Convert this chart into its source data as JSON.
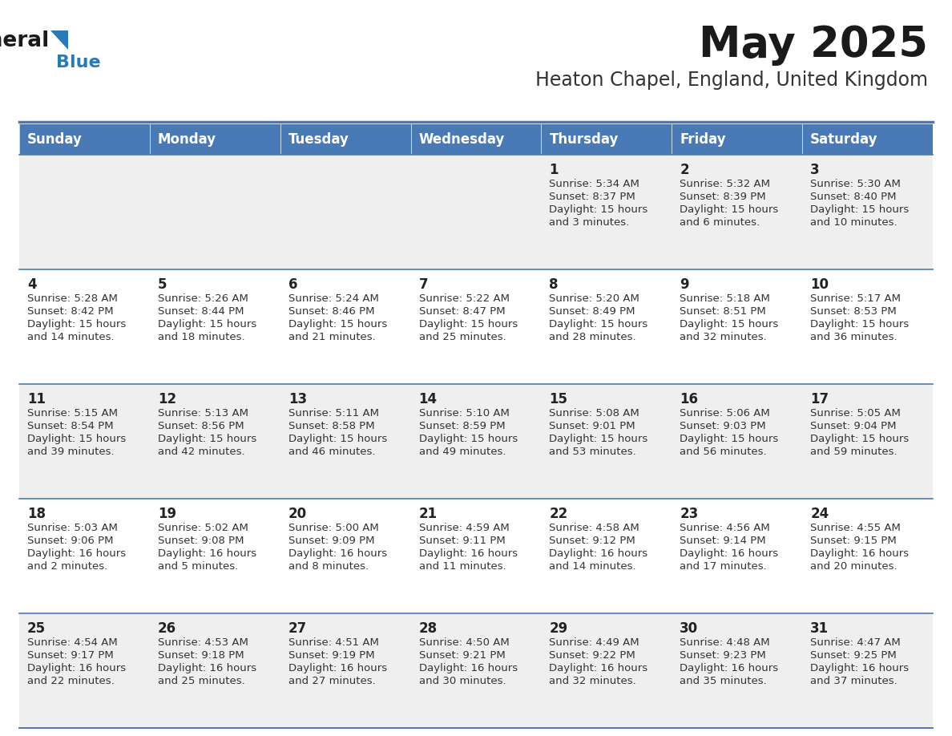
{
  "title": "May 2025",
  "subtitle": "Heaton Chapel, England, United Kingdom",
  "days_of_week": [
    "Sunday",
    "Monday",
    "Tuesday",
    "Wednesday",
    "Thursday",
    "Friday",
    "Saturday"
  ],
  "header_bg": "#4a7ab5",
  "header_text": "#FFFFFF",
  "cell_bg_light": "#efefef",
  "cell_bg_white": "#FFFFFF",
  "cell_border": "#4a7ab5",
  "day_number_color": "#222222",
  "text_color": "#333333",
  "title_color": "#1a1a1a",
  "subtitle_color": "#333333",
  "logo_black": "#1a1a1a",
  "logo_blue": "#2a7ab5",
  "calendar": [
    [
      {
        "day": "",
        "sunrise": "",
        "sunset": "",
        "daylight": ""
      },
      {
        "day": "",
        "sunrise": "",
        "sunset": "",
        "daylight": ""
      },
      {
        "day": "",
        "sunrise": "",
        "sunset": "",
        "daylight": ""
      },
      {
        "day": "",
        "sunrise": "",
        "sunset": "",
        "daylight": ""
      },
      {
        "day": "1",
        "sunrise": "5:34 AM",
        "sunset": "8:37 PM",
        "daylight": "15 hours\nand 3 minutes."
      },
      {
        "day": "2",
        "sunrise": "5:32 AM",
        "sunset": "8:39 PM",
        "daylight": "15 hours\nand 6 minutes."
      },
      {
        "day": "3",
        "sunrise": "5:30 AM",
        "sunset": "8:40 PM",
        "daylight": "15 hours\nand 10 minutes."
      }
    ],
    [
      {
        "day": "4",
        "sunrise": "5:28 AM",
        "sunset": "8:42 PM",
        "daylight": "15 hours\nand 14 minutes."
      },
      {
        "day": "5",
        "sunrise": "5:26 AM",
        "sunset": "8:44 PM",
        "daylight": "15 hours\nand 18 minutes."
      },
      {
        "day": "6",
        "sunrise": "5:24 AM",
        "sunset": "8:46 PM",
        "daylight": "15 hours\nand 21 minutes."
      },
      {
        "day": "7",
        "sunrise": "5:22 AM",
        "sunset": "8:47 PM",
        "daylight": "15 hours\nand 25 minutes."
      },
      {
        "day": "8",
        "sunrise": "5:20 AM",
        "sunset": "8:49 PM",
        "daylight": "15 hours\nand 28 minutes."
      },
      {
        "day": "9",
        "sunrise": "5:18 AM",
        "sunset": "8:51 PM",
        "daylight": "15 hours\nand 32 minutes."
      },
      {
        "day": "10",
        "sunrise": "5:17 AM",
        "sunset": "8:53 PM",
        "daylight": "15 hours\nand 36 minutes."
      }
    ],
    [
      {
        "day": "11",
        "sunrise": "5:15 AM",
        "sunset": "8:54 PM",
        "daylight": "15 hours\nand 39 minutes."
      },
      {
        "day": "12",
        "sunrise": "5:13 AM",
        "sunset": "8:56 PM",
        "daylight": "15 hours\nand 42 minutes."
      },
      {
        "day": "13",
        "sunrise": "5:11 AM",
        "sunset": "8:58 PM",
        "daylight": "15 hours\nand 46 minutes."
      },
      {
        "day": "14",
        "sunrise": "5:10 AM",
        "sunset": "8:59 PM",
        "daylight": "15 hours\nand 49 minutes."
      },
      {
        "day": "15",
        "sunrise": "5:08 AM",
        "sunset": "9:01 PM",
        "daylight": "15 hours\nand 53 minutes."
      },
      {
        "day": "16",
        "sunrise": "5:06 AM",
        "sunset": "9:03 PM",
        "daylight": "15 hours\nand 56 minutes."
      },
      {
        "day": "17",
        "sunrise": "5:05 AM",
        "sunset": "9:04 PM",
        "daylight": "15 hours\nand 59 minutes."
      }
    ],
    [
      {
        "day": "18",
        "sunrise": "5:03 AM",
        "sunset": "9:06 PM",
        "daylight": "16 hours\nand 2 minutes."
      },
      {
        "day": "19",
        "sunrise": "5:02 AM",
        "sunset": "9:08 PM",
        "daylight": "16 hours\nand 5 minutes."
      },
      {
        "day": "20",
        "sunrise": "5:00 AM",
        "sunset": "9:09 PM",
        "daylight": "16 hours\nand 8 minutes."
      },
      {
        "day": "21",
        "sunrise": "4:59 AM",
        "sunset": "9:11 PM",
        "daylight": "16 hours\nand 11 minutes."
      },
      {
        "day": "22",
        "sunrise": "4:58 AM",
        "sunset": "9:12 PM",
        "daylight": "16 hours\nand 14 minutes."
      },
      {
        "day": "23",
        "sunrise": "4:56 AM",
        "sunset": "9:14 PM",
        "daylight": "16 hours\nand 17 minutes."
      },
      {
        "day": "24",
        "sunrise": "4:55 AM",
        "sunset": "9:15 PM",
        "daylight": "16 hours\nand 20 minutes."
      }
    ],
    [
      {
        "day": "25",
        "sunrise": "4:54 AM",
        "sunset": "9:17 PM",
        "daylight": "16 hours\nand 22 minutes."
      },
      {
        "day": "26",
        "sunrise": "4:53 AM",
        "sunset": "9:18 PM",
        "daylight": "16 hours\nand 25 minutes."
      },
      {
        "day": "27",
        "sunrise": "4:51 AM",
        "sunset": "9:19 PM",
        "daylight": "16 hours\nand 27 minutes."
      },
      {
        "day": "28",
        "sunrise": "4:50 AM",
        "sunset": "9:21 PM",
        "daylight": "16 hours\nand 30 minutes."
      },
      {
        "day": "29",
        "sunrise": "4:49 AM",
        "sunset": "9:22 PM",
        "daylight": "16 hours\nand 32 minutes."
      },
      {
        "day": "30",
        "sunrise": "4:48 AM",
        "sunset": "9:23 PM",
        "daylight": "16 hours\nand 35 minutes."
      },
      {
        "day": "31",
        "sunrise": "4:47 AM",
        "sunset": "9:25 PM",
        "daylight": "16 hours\nand 37 minutes."
      }
    ]
  ]
}
